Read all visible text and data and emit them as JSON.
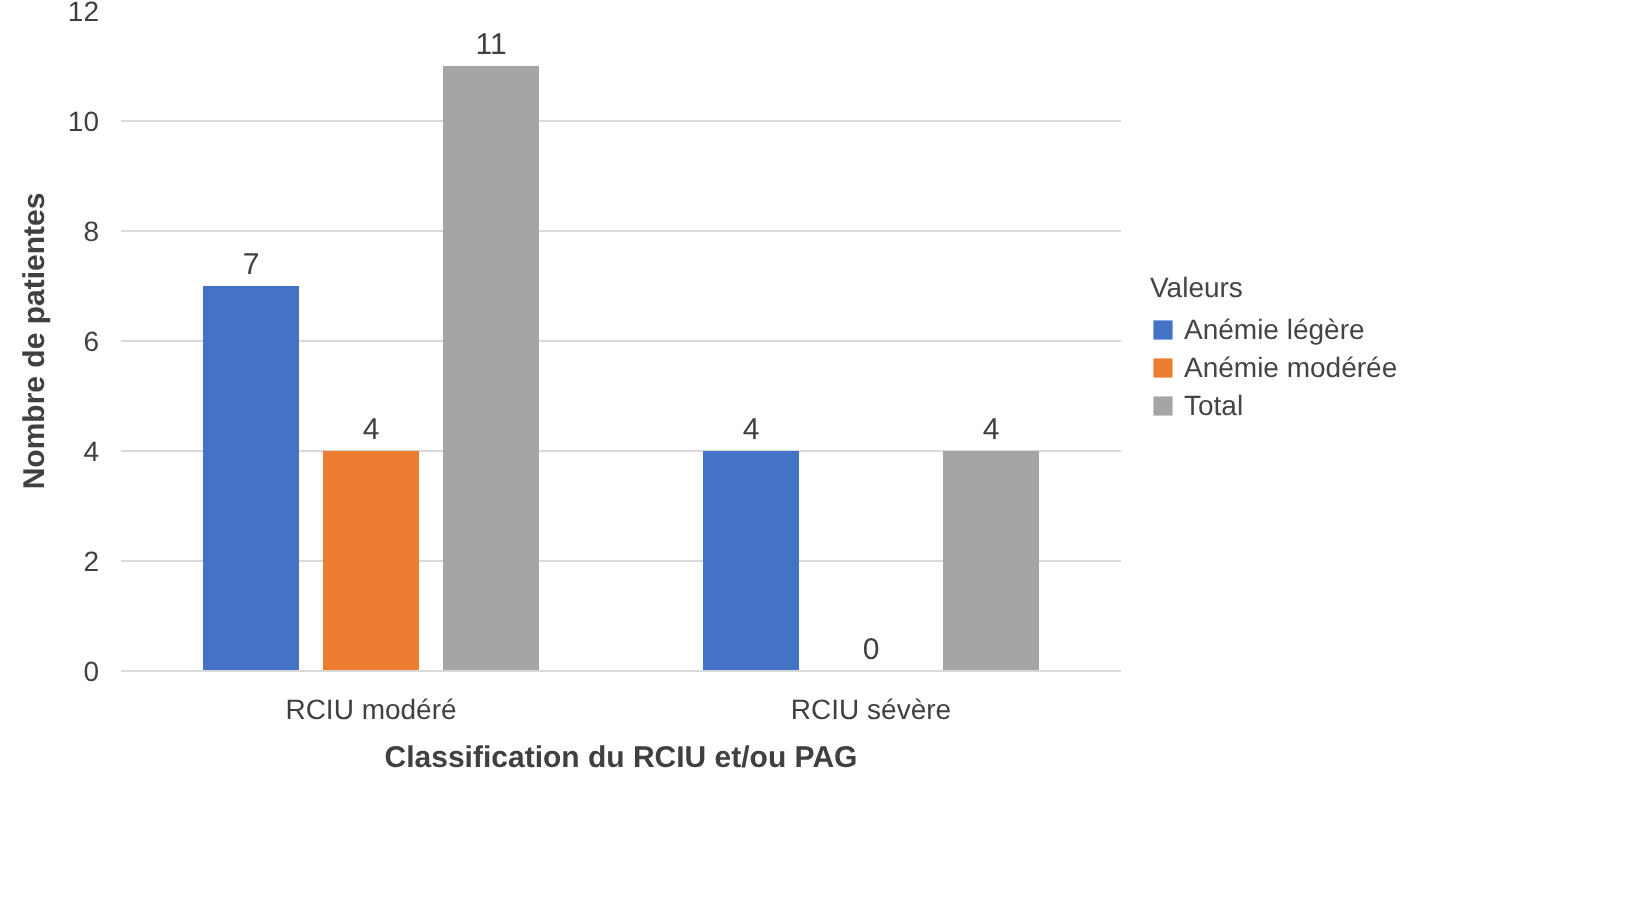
{
  "chart_data": {
    "type": "bar",
    "xlabel": "Classification du RCIU et/ou PAG",
    "ylabel": "Nombre de patientes",
    "legend_title": "Valeurs",
    "categories": [
      "RCIU modéré",
      "RCIU sévère"
    ],
    "series": [
      {
        "name": "Anémie légère",
        "color": "#4472c4",
        "values": [
          7,
          4
        ]
      },
      {
        "name": "Anémie modérée",
        "color": "#ed7d31",
        "values": [
          4,
          0
        ]
      },
      {
        "name": "Total",
        "color": "#a5a5a5",
        "values": [
          11,
          4
        ]
      }
    ],
    "ylim": [
      0,
      12
    ],
    "yticks": [
      0,
      2,
      4,
      6,
      8,
      10,
      12
    ],
    "grid": "y",
    "legend": "right",
    "data_labels": true
  }
}
